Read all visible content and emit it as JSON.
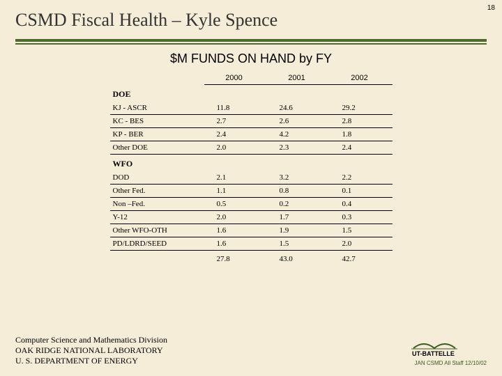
{
  "slide_number": "18",
  "title": "CSMD Fiscal Health – Kyle Spence",
  "subtitle": "$M FUNDS ON HAND by FY",
  "background_color": "#f6edd9",
  "rule_color": "#4d6b2f",
  "table": {
    "columns": [
      "",
      "2000",
      "2001",
      "2002"
    ],
    "sections": [
      {
        "heading": "DOE",
        "rows": [
          {
            "label": "KJ - ASCR",
            "values": [
              "11.8",
              "24.6",
              "29.2"
            ]
          },
          {
            "label": "KC - BES",
            "values": [
              "2.7",
              "2.6",
              "2.8"
            ]
          },
          {
            "label": "KP - BER",
            "values": [
              "2.4",
              "4.2",
              "1.8"
            ]
          },
          {
            "label": "Other DOE",
            "values": [
              "2.0",
              "2.3",
              "2.4"
            ]
          }
        ]
      },
      {
        "heading": "WFO",
        "rows": [
          {
            "label": "DOD",
            "values": [
              "2.1",
              "3.2",
              "2.2"
            ]
          },
          {
            "label": "Other Fed.",
            "values": [
              "1.1",
              "0.8",
              "0.1"
            ]
          },
          {
            "label": "Non –Fed.",
            "values": [
              "0.5",
              "0.2",
              "0.4"
            ]
          },
          {
            "label": "Y-12",
            "values": [
              "2.0",
              "1.7",
              "0.3"
            ]
          },
          {
            "label": "Other WFO-OTH",
            "values": [
              "1.6",
              "1.9",
              "1.5"
            ]
          },
          {
            "label": "PD/LDRD/SEED",
            "values": [
              "1.6",
              "1.5",
              "2.0"
            ]
          }
        ]
      }
    ],
    "totals": [
      "27.8",
      "43.0",
      "42.7"
    ]
  },
  "footer": {
    "line1": "Computer Science and Mathematics Division",
    "line2": "OAK RIDGE NATIONAL LABORATORY",
    "line3": "U. S. DEPARTMENT OF ENERGY"
  },
  "logo_text": "UT-BATTELLE",
  "logo_color": "#3a5a1f",
  "tagline": "JAN CSMD All Staff 12/10/02"
}
